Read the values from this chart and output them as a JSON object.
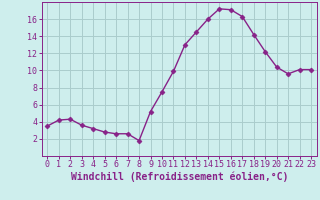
{
  "x": [
    0,
    1,
    2,
    3,
    4,
    5,
    6,
    7,
    8,
    9,
    10,
    11,
    12,
    13,
    14,
    15,
    16,
    17,
    18,
    19,
    20,
    21,
    22,
    23
  ],
  "y": [
    3.5,
    4.2,
    4.3,
    3.6,
    3.2,
    2.8,
    2.6,
    2.6,
    1.8,
    5.2,
    7.5,
    9.9,
    13.0,
    14.5,
    16.0,
    17.2,
    17.1,
    16.3,
    14.2,
    12.2,
    10.4,
    9.6,
    10.1,
    10.1
  ],
  "line_color": "#882288",
  "marker": "D",
  "marker_size": 2.5,
  "bg_color": "#ceeeed",
  "grid_color": "#aacccc",
  "xlabel": "Windchill (Refroidissement éolien,°C)",
  "xlabel_color": "#882288",
  "tick_color": "#882288",
  "ylim": [
    0,
    18
  ],
  "yticks": [
    2,
    4,
    6,
    8,
    10,
    12,
    14,
    16
  ],
  "xticks": [
    0,
    1,
    2,
    3,
    4,
    5,
    6,
    7,
    8,
    9,
    10,
    11,
    12,
    13,
    14,
    15,
    16,
    17,
    18,
    19,
    20,
    21,
    22,
    23
  ],
  "font_size": 6.0,
  "label_font_size": 7.0
}
